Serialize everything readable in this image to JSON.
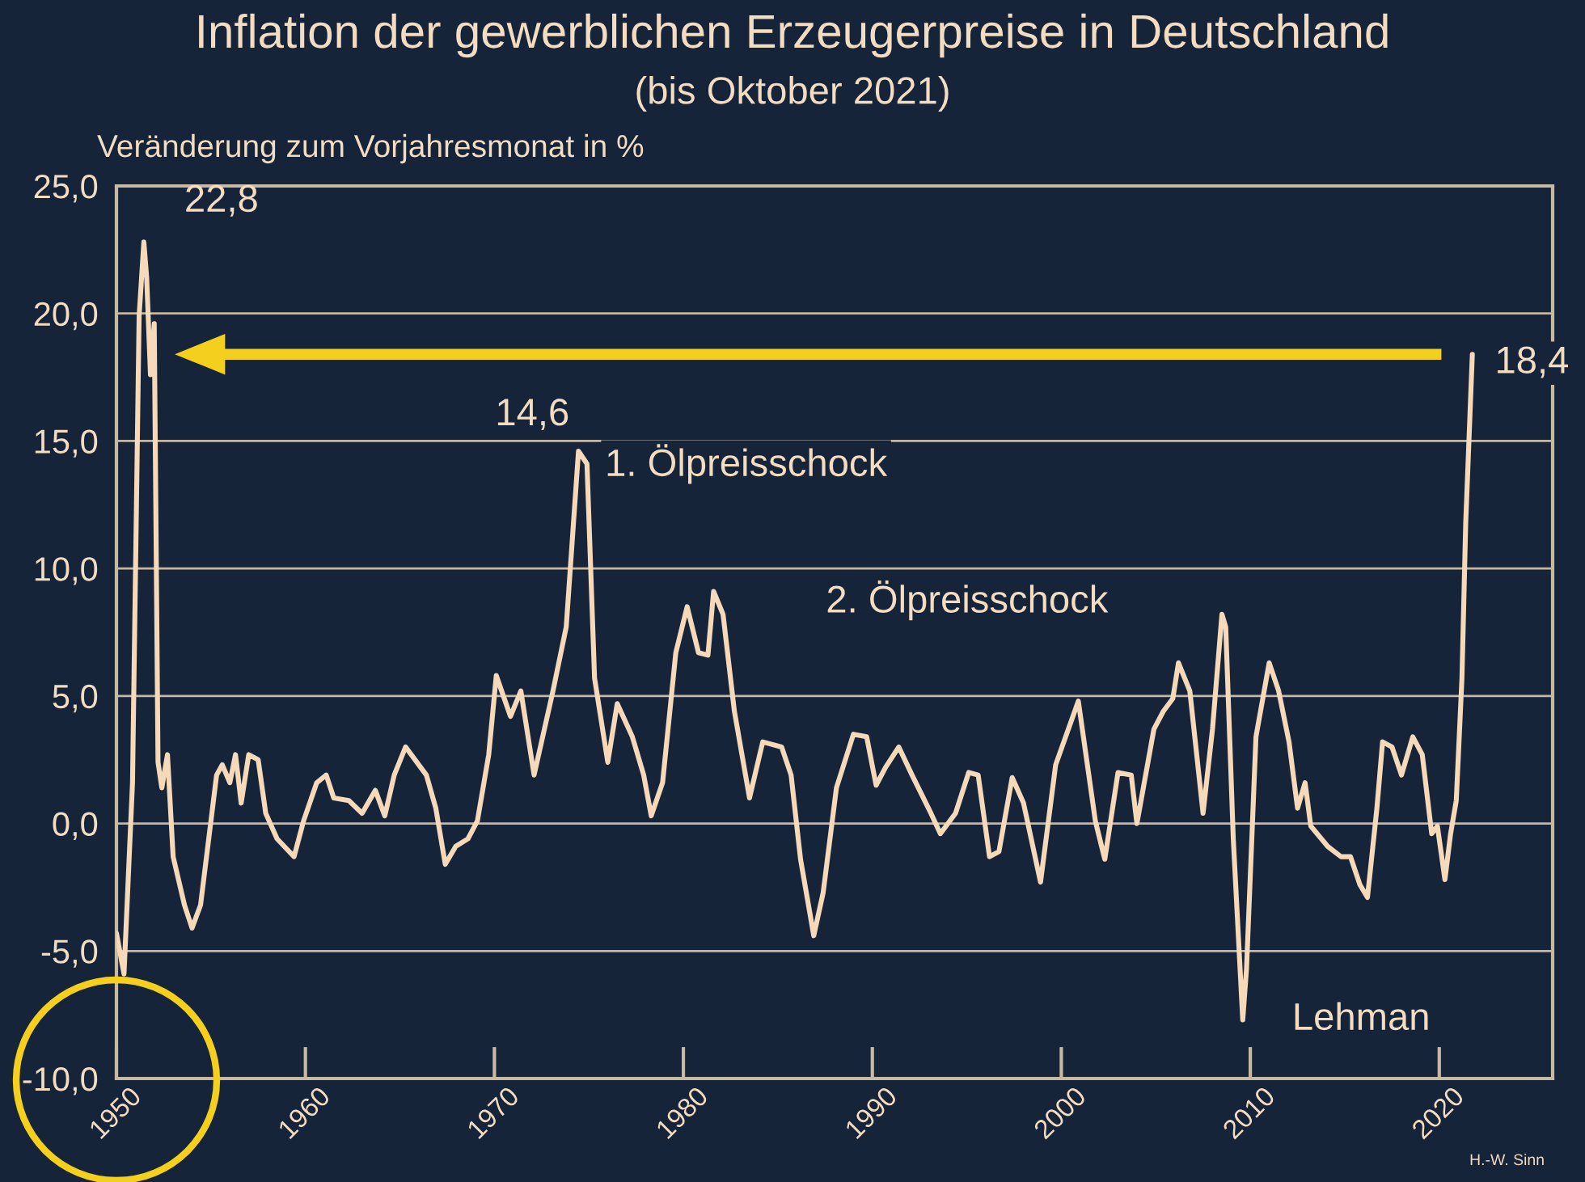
{
  "chart_data": {
    "type": "line",
    "title": "Inflation der gewerblichen Erzeugerpreise in Deutschland",
    "subtitle": "(bis Oktober 2021)",
    "ylabel": "Veränderung zum Vorjahresmonat in %",
    "x": [
      1950.0,
      1950.4,
      1950.85,
      1951.2,
      1951.45,
      1951.6,
      1951.8,
      1952.0,
      1952.2,
      1952.4,
      1952.7,
      1953.0,
      1953.6,
      1954.0,
      1954.45,
      1955.3,
      1955.6,
      1956.0,
      1956.3,
      1956.6,
      1957.0,
      1957.5,
      1957.9,
      1958.5,
      1959.4,
      1959.9,
      1960.6,
      1961.1,
      1961.5,
      1962.3,
      1963.0,
      1963.7,
      1964.2,
      1964.7,
      1965.3,
      1965.9,
      1966.4,
      1966.9,
      1967.4,
      1967.95,
      1968.6,
      1969.1,
      1969.7,
      1970.1,
      1970.85,
      1971.4,
      1972.1,
      1973.1,
      1973.8,
      1974.45,
      1974.9,
      1975.3,
      1976.0,
      1976.5,
      1977.3,
      1977.9,
      1978.3,
      1978.9,
      1979.6,
      1980.2,
      1980.8,
      1981.3,
      1981.6,
      1982.1,
      1982.7,
      1983.5,
      1984.2,
      1985.2,
      1985.7,
      1986.2,
      1986.9,
      1987.4,
      1988.1,
      1989.0,
      1989.7,
      1990.2,
      1990.7,
      1991.4,
      1992.1,
      1993.1,
      1993.6,
      1994.4,
      1995.1,
      1995.6,
      1996.2,
      1996.7,
      1997.4,
      1998.0,
      1998.9,
      1999.7,
      2000.9,
      2001.8,
      2002.3,
      2003.0,
      2003.7,
      2004.0,
      2004.9,
      2005.4,
      2005.9,
      2006.2,
      2006.8,
      2007.5,
      2008.0,
      2008.5,
      2008.7,
      2009.1,
      2009.6,
      2009.8,
      2010.3,
      2011.0,
      2011.5,
      2012.05,
      2012.5,
      2012.9,
      2013.2,
      2014.1,
      2014.8,
      2015.3,
      2015.8,
      2016.2,
      2016.7,
      2017.0,
      2017.5,
      2018.0,
      2018.6,
      2019.1,
      2019.6,
      2019.9,
      2020.3,
      2020.6,
      2020.9,
      2021.2,
      2021.4,
      2021.75
    ],
    "series": [
      {
        "color": "#f6d9b8",
        "values": [
          -4.3,
          -5.9,
          1.6,
          19.9,
          22.8,
          21.4,
          17.6,
          19.6,
          2.4,
          1.4,
          2.7,
          -1.3,
          -3.2,
          -4.1,
          -3.2,
          1.9,
          2.3,
          1.6,
          2.7,
          0.8,
          2.7,
          2.5,
          0.4,
          -0.6,
          -1.3,
          0.1,
          1.6,
          1.9,
          1.0,
          0.9,
          0.4,
          1.3,
          0.3,
          1.9,
          3.0,
          2.4,
          1.9,
          0.6,
          -1.6,
          -0.9,
          -0.6,
          0.1,
          2.7,
          5.8,
          4.2,
          5.2,
          1.9,
          5.2,
          7.7,
          14.6,
          14.1,
          5.7,
          2.4,
          4.7,
          3.4,
          1.9,
          0.3,
          1.6,
          6.7,
          8.5,
          6.7,
          6.6,
          9.1,
          8.2,
          4.4,
          1.0,
          3.2,
          3.0,
          1.9,
          -1.4,
          -4.4,
          -2.7,
          1.4,
          3.5,
          3.4,
          1.5,
          2.2,
          3.0,
          1.9,
          0.4,
          -0.4,
          0.4,
          2.0,
          1.9,
          -1.3,
          -1.1,
          1.8,
          0.8,
          -2.3,
          2.3,
          4.8,
          0.1,
          -1.4,
          2.0,
          1.9,
          0.0,
          3.7,
          4.4,
          4.9,
          6.3,
          5.2,
          0.4,
          3.7,
          8.2,
          7.7,
          -0.6,
          -7.7,
          -5.7,
          3.4,
          6.3,
          5.2,
          3.2,
          0.6,
          1.6,
          -0.1,
          -0.9,
          -1.3,
          -1.3,
          -2.4,
          -2.9,
          0.6,
          3.2,
          3.0,
          1.9,
          3.4,
          2.7,
          -0.4,
          -0.1,
          -2.2,
          -0.4,
          0.9,
          5.7,
          11.8,
          18.4
        ]
      }
    ],
    "xlim": [
      1950,
      2026
    ],
    "ylim": [
      -10,
      25
    ],
    "xticks": [
      1950,
      1960,
      1970,
      1980,
      1990,
      2000,
      2010,
      2020
    ],
    "yticks": [
      {
        "value": -10,
        "label": "-10,0"
      },
      {
        "value": -5,
        "label": "-5,0"
      },
      {
        "value": 0,
        "label": "0,0"
      },
      {
        "value": 5,
        "label": "5,0"
      },
      {
        "value": 10,
        "label": "10,0"
      },
      {
        "value": 15,
        "label": "15,0"
      },
      {
        "value": 20,
        "label": "20,0"
      },
      {
        "value": 25,
        "label": "25,0"
      }
    ],
    "grid": "y",
    "legend": false,
    "annotations": [
      {
        "text": "22,8",
        "x": 1951.45,
        "y": 22.8
      },
      {
        "text": "14,6",
        "x": 1974.45,
        "y": 14.6
      },
      {
        "text": "18,4",
        "x": 2021.75,
        "y": 18.4
      },
      {
        "text": "1. Ölpreisschock",
        "x": 1974.9,
        "y": 14.1
      },
      {
        "text": "2. Ölpreisschock",
        "x": 1981.6,
        "y": 9.1
      },
      {
        "text": "Lehman",
        "x": 2009.6,
        "y": -7.7
      },
      "H.-W. Sinn"
    ]
  }
}
